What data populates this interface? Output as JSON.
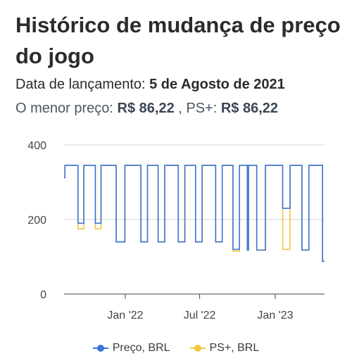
{
  "header": {
    "title": "Histórico de mudança de preço do jogo",
    "release_label": "Data de lançamento:",
    "release_value": "5 de Agosto de 2021",
    "lowest_label": "O menor preço:",
    "lowest_value": "R$ 86,22",
    "ps_label": ", PS+:",
    "ps_value": "R$ 86,22"
  },
  "colors": {
    "price": "#3b73d9",
    "psplus": "#f5c542",
    "axis": "#444444",
    "grid": "#d6d6d6"
  },
  "chart_data": {
    "type": "line",
    "title": "",
    "xlabel": "",
    "ylabel": "",
    "x_range": [
      "2021-08-05",
      "2023-05-01"
    ],
    "ylim": [
      0,
      400
    ],
    "y_ticks": [
      0,
      200,
      400
    ],
    "x_ticks": [
      {
        "date": "2022-01-01",
        "label": "Jan '22"
      },
      {
        "date": "2022-07-01",
        "label": "Jul '22"
      },
      {
        "date": "2023-01-01",
        "label": "Jan '23"
      }
    ],
    "step": true,
    "grid": true,
    "legend_position": "bottom",
    "series": [
      {
        "name": "Preço, BRL",
        "color": "#3b73d9",
        "points": [
          [
            "2021-08-05",
            312
          ],
          [
            "2021-08-07",
            345
          ],
          [
            "2021-09-08",
            190
          ],
          [
            "2021-09-22",
            345
          ],
          [
            "2021-10-20",
            190
          ],
          [
            "2021-11-03",
            345
          ],
          [
            "2021-12-01",
            345
          ],
          [
            "2021-12-10",
            140
          ],
          [
            "2021-12-31",
            345
          ],
          [
            "2022-02-08",
            140
          ],
          [
            "2022-02-24",
            345
          ],
          [
            "2022-03-22",
            140
          ],
          [
            "2022-04-07",
            345
          ],
          [
            "2022-05-10",
            140
          ],
          [
            "2022-05-26",
            345
          ],
          [
            "2022-06-21",
            140
          ],
          [
            "2022-07-07",
            345
          ],
          [
            "2022-08-09",
            140
          ],
          [
            "2022-08-25",
            345
          ],
          [
            "2022-09-20",
            120
          ],
          [
            "2022-10-06",
            345
          ],
          [
            "2022-10-25",
            118
          ],
          [
            "2022-10-28",
            345
          ],
          [
            "2022-11-17",
            118
          ],
          [
            "2022-12-08",
            345
          ],
          [
            "2023-01-19",
            230
          ],
          [
            "2023-02-06",
            345
          ],
          [
            "2023-03-07",
            118
          ],
          [
            "2023-03-24",
            345
          ],
          [
            "2023-04-26",
            88
          ],
          [
            "2023-05-01",
            88
          ]
        ]
      },
      {
        "name": "PS+, BRL",
        "color": "#f5c542",
        "points": [
          [
            "2021-08-05",
            312
          ],
          [
            "2021-08-07",
            345
          ],
          [
            "2021-09-08",
            175
          ],
          [
            "2021-09-22",
            345
          ],
          [
            "2021-10-20",
            175
          ],
          [
            "2021-11-03",
            345
          ],
          [
            "2021-12-01",
            345
          ],
          [
            "2021-12-10",
            140
          ],
          [
            "2021-12-31",
            345
          ],
          [
            "2022-02-08",
            140
          ],
          [
            "2022-02-24",
            345
          ],
          [
            "2022-03-22",
            140
          ],
          [
            "2022-04-07",
            345
          ],
          [
            "2022-05-10",
            140
          ],
          [
            "2022-05-26",
            345
          ],
          [
            "2022-06-21",
            140
          ],
          [
            "2022-07-07",
            345
          ],
          [
            "2022-08-09",
            140
          ],
          [
            "2022-08-25",
            345
          ],
          [
            "2022-09-20",
            115
          ],
          [
            "2022-10-06",
            345
          ],
          [
            "2022-10-25",
            118
          ],
          [
            "2022-10-28",
            345
          ],
          [
            "2022-11-17",
            118
          ],
          [
            "2022-12-08",
            345
          ],
          [
            "2023-01-19",
            120
          ],
          [
            "2023-02-06",
            345
          ],
          [
            "2023-03-07",
            118
          ],
          [
            "2023-03-24",
            345
          ],
          [
            "2023-04-26",
            88
          ],
          [
            "2023-05-01",
            88
          ]
        ]
      }
    ]
  }
}
